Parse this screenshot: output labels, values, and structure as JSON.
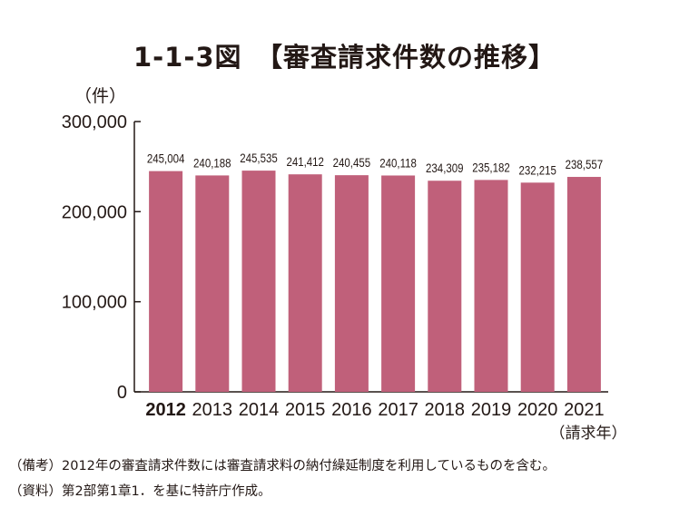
{
  "chart_data": {
    "type": "bar",
    "title": "1-1-3図　【審査請求件数の推移】",
    "ylabel": "（件）",
    "xlabel": "（請求年）",
    "categories": [
      "2012",
      "2013",
      "2014",
      "2015",
      "2016",
      "2017",
      "2018",
      "2019",
      "2020",
      "2021"
    ],
    "values": [
      245004,
      240188,
      245535,
      241412,
      240455,
      240118,
      234309,
      235182,
      232215,
      238557
    ],
    "data_labels": [
      "245,004",
      "240,188",
      "245,535",
      "241,412",
      "240,455",
      "240,118",
      "234,309",
      "235,182",
      "232,215",
      "238,557"
    ],
    "ylim": [
      0,
      300000
    ],
    "yticks": [
      0,
      100000,
      200000,
      300000
    ],
    "ytick_labels": [
      "0",
      "100,000",
      "200,000",
      "300,000"
    ],
    "grid": false,
    "bar_color": "#c0607a"
  },
  "notes": [
    "（備考）2012年の審査請求件数には審査請求料の納付繰延制度を利用しているものを含む。",
    "（資料）第2部第1章1．を基に特許庁作成。"
  ]
}
